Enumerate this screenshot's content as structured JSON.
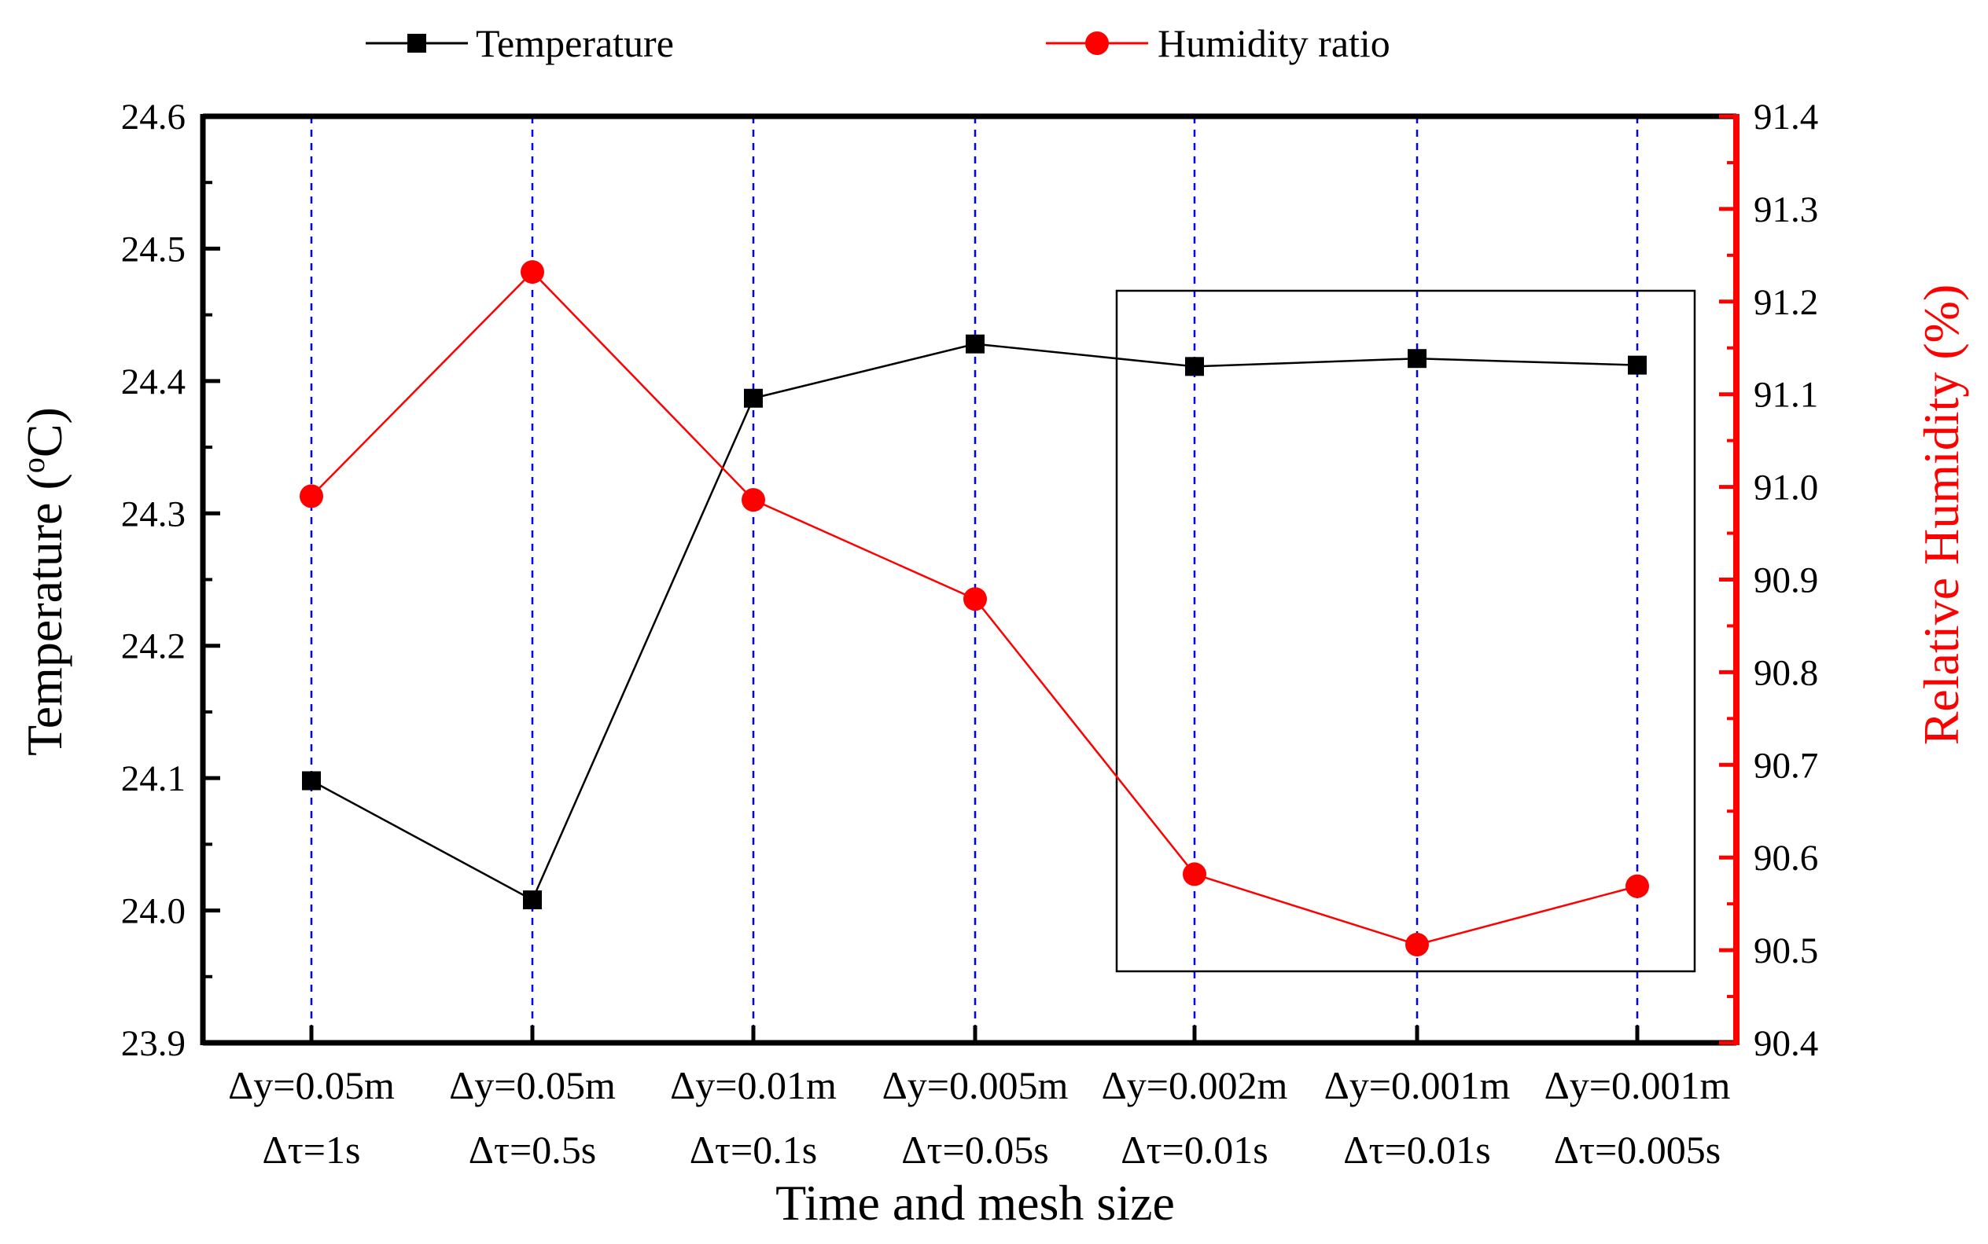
{
  "chart_data": {
    "type": "line",
    "xlabel": "Time and mesh size",
    "ylabel_left_main": "Temperature (",
    "ylabel_left_sup": "o",
    "ylabel_left_end": "C)",
    "ylabel_right": "Relative Humidity (%)",
    "categories": [
      [
        "Δy=0.05m",
        "Δτ=1s"
      ],
      [
        "Δy=0.05m",
        "Δτ=0.5s"
      ],
      [
        "Δy=0.01m",
        "Δτ=0.1s"
      ],
      [
        "Δy=0.005m",
        "Δτ=0.05s"
      ],
      [
        "Δy=0.002m",
        "Δτ=0.01s"
      ],
      [
        "Δy=0.001m",
        "Δτ=0.01s"
      ],
      [
        "Δy=0.001m",
        "Δτ=0.005s"
      ]
    ],
    "ylim_left": [
      23.9,
      24.6
    ],
    "yticks_left": [
      "23.9",
      "24.0",
      "24.1",
      "24.2",
      "24.3",
      "24.4",
      "24.5",
      "24.6"
    ],
    "ylim_right": [
      90.4,
      91.4
    ],
    "yticks_right": [
      "90.4",
      "90.5",
      "90.6",
      "90.7",
      "90.8",
      "90.9",
      "91.0",
      "91.1",
      "91.2",
      "91.3",
      "91.4"
    ],
    "series": [
      {
        "name": "Temperature",
        "axis": "left",
        "marker": "square",
        "color": "#000000",
        "values": [
          24.098,
          24.008,
          24.387,
          24.428,
          24.411,
          24.417,
          24.412
        ]
      },
      {
        "name": "Humidity ratio",
        "axis": "right",
        "marker": "circle",
        "color": "#ff0000",
        "values": [
          90.99,
          91.232,
          90.986,
          90.879,
          90.582,
          90.506,
          90.569
        ]
      }
    ],
    "grid": "vertical dashed blue lines at each category",
    "legend": "top",
    "highlight_box": "rectangle around last three categories"
  }
}
